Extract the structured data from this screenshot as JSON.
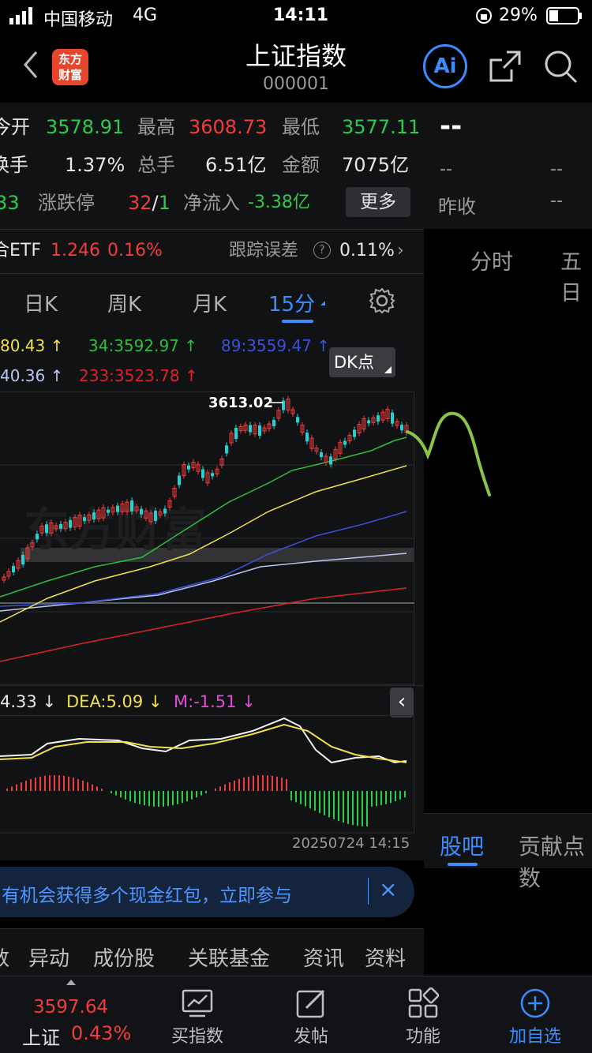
{
  "status_bar": {
    "carrier": "中国移动",
    "network": "4G",
    "time": "14:11",
    "battery": "29%"
  },
  "header": {
    "title": "上证指数",
    "code": "000001",
    "logo_line1": "东方",
    "logo_line2": "财富",
    "ai_label": "Ai"
  },
  "quote": {
    "open_label": "今开",
    "open_value": "3578.91",
    "high_label": "最高",
    "high_value": "3608.73",
    "low_label": "最低",
    "low_value": "3577.11",
    "turnover_label": "换手",
    "turnover_value": "1.37%",
    "volume_label": "总手",
    "volume_value": "6.51亿",
    "amount_label": "金额",
    "amount_value": "7075亿",
    "left_partial": "33",
    "limit_label": "涨跌停",
    "limit_up": "32",
    "limit_sep": "/",
    "limit_down": "1",
    "netflow_label": "净流入",
    "netflow_value": "-3.38亿",
    "more_label": "更多",
    "etf_label": "合ETF",
    "etf_price": "1.246",
    "etf_change": "0.16%",
    "tracking_label": "跟踪误差",
    "tracking_value": "0.11%"
  },
  "right_panel": {
    "dash_big": "--",
    "dash1": "--",
    "dash2": "--",
    "prev_close_label": "昨收",
    "prev_close_value": "--",
    "tab_intraday": "分时",
    "tab_fiveday": "五日",
    "bar_label": "股吧",
    "contrib_label": "贡献点数"
  },
  "period_tabs": [
    "日K",
    "周K",
    "月K",
    "15分"
  ],
  "ma_legend": {
    "ma1": "80.43",
    "ma1_arrow": "↑",
    "ma34": "34:3592.97",
    "ma34_arrow": "↑",
    "ma89": "89:3559.47",
    "ma89_arrow": "↑",
    "ma2": "40.36",
    "ma2_arrow": "↑",
    "ma233": "233:3523.78",
    "ma233_arrow": "↑",
    "dk_label": "DK点"
  },
  "chart_data": {
    "type": "candlestick",
    "period": "15分",
    "high_annotation": "3613.02",
    "datetime": "20250724 14:15",
    "indicator": {
      "dif": "4.33",
      "dif_arrow": "↓",
      "dea": "DEA:5.09",
      "dea_arrow": "↓",
      "m": "M:-1.51",
      "m_arrow": "↓"
    }
  },
  "banner": {
    "text": "有机会获得多个现金红包，立即参与",
    "close": "×"
  },
  "section_tabs": [
    "数",
    "异动",
    "成份股",
    "关联基金",
    "资讯",
    "资料"
  ],
  "bottom_bar": {
    "index_value": "3597.64",
    "index_name": "上证",
    "index_change": "0.43%",
    "buy_label": "买指数",
    "post_label": "发帖",
    "function_label": "功能",
    "add_label": "加自选"
  },
  "colors": {
    "up": "#f23c3c",
    "down": "#2ecb4a",
    "accent": "#3b8cff",
    "ma_yellow": "#f0e04a",
    "ma_green": "#2bbf3a",
    "ma_blue": "#3c4fd9",
    "ma_lightblue": "#b9c6f2",
    "ma_red": "#d9242a",
    "macd_magenta": "#e24ad8"
  }
}
